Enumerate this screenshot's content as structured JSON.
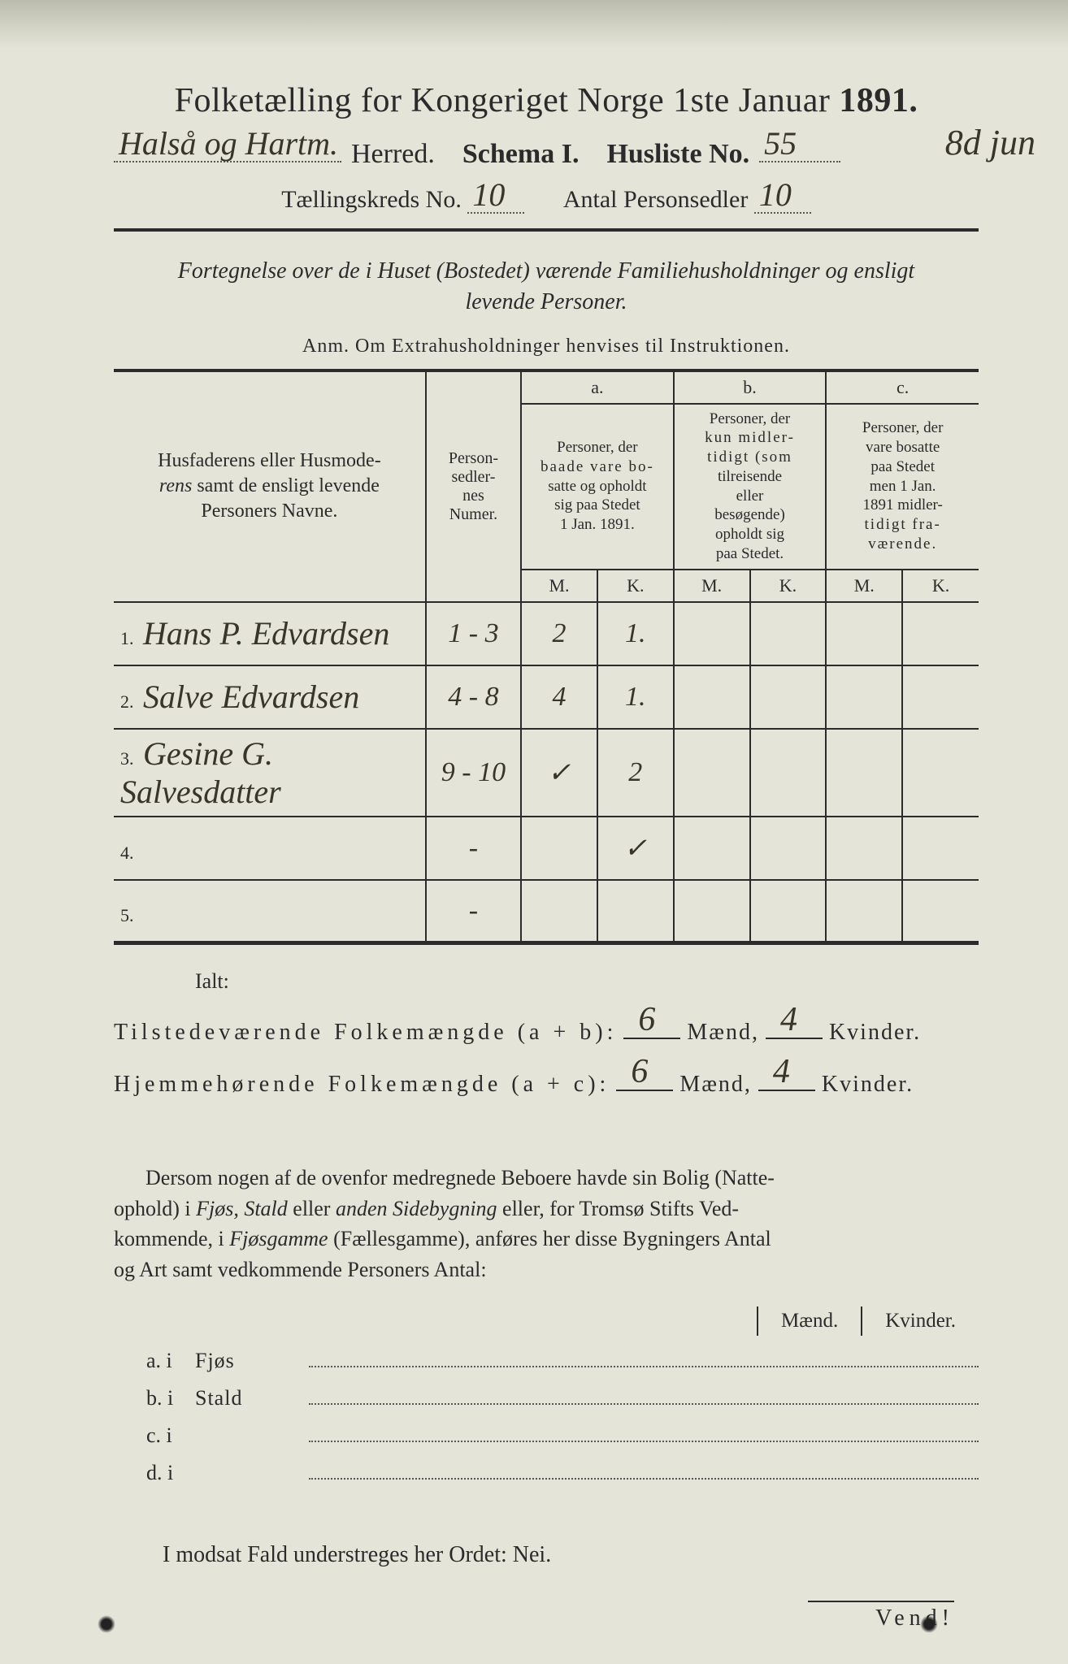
{
  "colors": {
    "paper": "#e4e5d8",
    "ink_print": "#2b2b2b",
    "ink_handwritten": "#38352a",
    "rule": "#2b2b2b",
    "dot": "#555555"
  },
  "header": {
    "title_prefix": "Folketælling for Kongeriget Norge 1ste Januar",
    "year": "1891.",
    "herred_handwritten": "Halså og Hartm.",
    "herred_label": "Herred.",
    "schema_label": "Schema I.",
    "husliste_label": "Husliste No.",
    "husliste_no": "55",
    "margin_note": "8d jun",
    "kreds_label": "Tællingskreds No.",
    "kreds_no": "10",
    "antal_label": "Antal Personsedler",
    "antal_value": "10"
  },
  "subtitle": {
    "line1": "Fortegnelse over de i Huset (Bostedet) værende Familiehusholdninger og ensligt",
    "line2": "levende Personer."
  },
  "anm": "Anm.   Om Extrahusholdninger henvises til Instruktionen.",
  "table": {
    "col_name": {
      "l1": "Husfaderens eller Husmode-",
      "l2": "rens samt de ensligt levende",
      "l3": "Personers Navne."
    },
    "col_num": {
      "l1": "Person-",
      "l2": "sedler-",
      "l3": "nes",
      "l4": "Numer."
    },
    "a": {
      "label": "a.",
      "l1": "Personer, der",
      "l2": "baade vare bo-",
      "l3": "satte og opholdt",
      "l4": "sig paa Stedet",
      "l5": "1 Jan. 1891."
    },
    "b": {
      "label": "b.",
      "l1": "Personer, der",
      "l2": "kun midler-",
      "l3": "tidigt (som",
      "l4": "tilreisende",
      "l5": "eller",
      "l6": "besøgende)",
      "l7": "opholdt sig",
      "l8": "paa Stedet."
    },
    "c": {
      "label": "c.",
      "l1": "Personer, der",
      "l2": "vare bosatte",
      "l3": "paa Stedet",
      "l4": "men 1 Jan.",
      "l5": "1891 midler-",
      "l6": "tidigt fra-",
      "l7": "værende."
    },
    "M": "M.",
    "K": "K.",
    "rows": [
      {
        "n": "1.",
        "name": "Hans P. Edvardsen",
        "numer": "1 - 3",
        "aM": "2",
        "aK": "1.",
        "bM": "",
        "bK": "",
        "cM": "",
        "cK": ""
      },
      {
        "n": "2.",
        "name": "Salve Edvardsen",
        "numer": "4 - 8",
        "aM": "4",
        "aK": "1.",
        "bM": "",
        "bK": "",
        "cM": "",
        "cK": ""
      },
      {
        "n": "3.",
        "name": "Gesine G. Salvesdatter",
        "numer": "9 - 10",
        "aM": "✓",
        "aK": "2",
        "bM": "",
        "bK": "",
        "cM": "",
        "cK": ""
      },
      {
        "n": "4.",
        "name": "",
        "numer": "-",
        "aM": "",
        "aK": "✓",
        "bM": "",
        "bK": "",
        "cM": "",
        "cK": ""
      },
      {
        "n": "5.",
        "name": "",
        "numer": "-",
        "aM": "",
        "aK": "",
        "bM": "",
        "bK": "",
        "cM": "",
        "cK": ""
      }
    ]
  },
  "ialt": {
    "label": "Ialt:",
    "tilstede_lbl": "Tilstedeværende Folkemængde (a + b):",
    "hjemme_lbl": "Hjemmehørende Folkemængde (a + c):",
    "maend": "Mænd,",
    "kvinder": "Kvinder.",
    "tilstede_m": "6",
    "tilstede_k": "4",
    "hjemme_m": "6",
    "hjemme_k": "4"
  },
  "dersom": {
    "text": "Dersom nogen af de ovenfor medregnede Beboere havde sin Bolig (Natte-ophold) i Fjøs, Stald eller anden Sidebygning eller, for Tromsø Stifts Vedkommende, i Fjøsgamme (Fællesgamme), anføres her disse Bygningers Antal og Art samt vedkommende Personers Antal:"
  },
  "mk_hdr": {
    "m": "Mænd.",
    "k": "Kvinder."
  },
  "sub_lines": [
    {
      "lbl": "a.  i",
      "typ": "Fjøs"
    },
    {
      "lbl": "b.  i",
      "typ": "Stald"
    },
    {
      "lbl": "c.  i",
      "typ": ""
    },
    {
      "lbl": "d.  i",
      "typ": ""
    }
  ],
  "modsat": "I modsat Fald understreges her Ordet: Nei.",
  "vend": "Vend!"
}
